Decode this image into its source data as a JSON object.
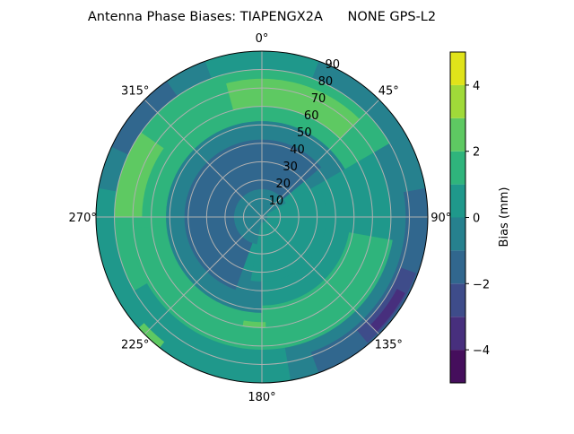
{
  "chart_data": {
    "type": "polar-contour",
    "title": "Antenna Phase Biases: TIAPENGX2A      NONE GPS-L2",
    "angular_ticks": [
      {
        "deg": 0,
        "label": "0°"
      },
      {
        "deg": 45,
        "label": "45°"
      },
      {
        "deg": 90,
        "label": "90°"
      },
      {
        "deg": 135,
        "label": "135°"
      },
      {
        "deg": 180,
        "label": "180°"
      },
      {
        "deg": 225,
        "label": "225°"
      },
      {
        "deg": 270,
        "label": "270°"
      },
      {
        "deg": 315,
        "label": "315°"
      }
    ],
    "angular_direction": "clockwise",
    "zero_location": "north",
    "radial_range": [
      0,
      90
    ],
    "radial_ticks": [
      "10",
      "20",
      "30",
      "40",
      "50",
      "60",
      "70",
      "80",
      "90"
    ],
    "grid": true,
    "colorbar": {
      "label": "Bias (mm)",
      "range": [
        -5,
        5
      ],
      "levels": [
        -5,
        -4,
        -3,
        -2,
        -1,
        0,
        1,
        2,
        3,
        4,
        5
      ],
      "ticks": [
        "−4",
        "−2",
        "0",
        "2",
        "4"
      ],
      "tick_values": [
        -4,
        -2,
        0,
        2,
        4
      ],
      "colors": [
        "#450e5c",
        "#472f7d",
        "#3e4c8a",
        "#31678e",
        "#26818e",
        "#1f988b",
        "#2fb47c",
        "#5ec962",
        "#a0da39",
        "#e0e31a"
      ]
    },
    "regions": [
      {
        "level": 0.5,
        "az": [
          0,
          360
        ],
        "zen": [
          0,
          90
        ]
      },
      {
        "level": -0.5,
        "az": [
          280,
          340
        ],
        "zen": [
          70,
          90
        ]
      },
      {
        "level": -1.5,
        "az": [
          295,
          325
        ],
        "zen": [
          78,
          90
        ]
      },
      {
        "level": -0.5,
        "az": [
          20,
          70
        ],
        "zen": [
          78,
          90
        ]
      },
      {
        "level": -0.5,
        "az": [
          60,
          170
        ],
        "zen": [
          70,
          90
        ]
      },
      {
        "level": -1.5,
        "az": [
          80,
          160
        ],
        "zen": [
          78,
          90
        ]
      },
      {
        "level": -2.5,
        "az": [
          110,
          140
        ],
        "zen": [
          80,
          89
        ]
      },
      {
        "level": -3.5,
        "az": [
          118,
          135
        ],
        "zen": [
          83,
          88
        ]
      },
      {
        "level": 1.5,
        "az": [
          240,
          420
        ],
        "zen": [
          52,
          80
        ]
      },
      {
        "level": 2.5,
        "az": [
          345,
          405
        ],
        "zen": [
          60,
          75
        ]
      },
      {
        "level": 2.5,
        "az": [
          270,
          305
        ],
        "zen": [
          65,
          80
        ]
      },
      {
        "level": 1.5,
        "az": [
          100,
          265
        ],
        "zen": [
          48,
          72
        ]
      },
      {
        "level": 2.5,
        "az": [
          178,
          190
        ],
        "zen": [
          57,
          60
        ]
      },
      {
        "level": 2.5,
        "az": [
          218,
          228
        ],
        "zen": [
          86,
          90
        ]
      },
      {
        "level": -0.5,
        "az": [
          180,
          420
        ],
        "zen": [
          30,
          52
        ]
      },
      {
        "level": -1.5,
        "az": [
          200,
          410
        ],
        "zen": [
          15,
          42
        ]
      },
      {
        "level": -0.5,
        "az": [
          0,
          360
        ],
        "zen": [
          0,
          15
        ]
      },
      {
        "level": 0.5,
        "az": [
          60,
          190
        ],
        "zen": [
          3,
          35
        ]
      }
    ]
  }
}
